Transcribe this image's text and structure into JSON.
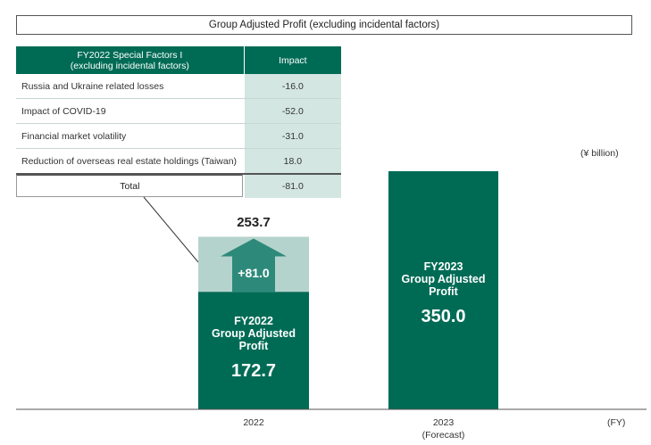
{
  "chart_data": {
    "type": "bar",
    "title": "Group Adjusted Profit (excluding incidental factors)",
    "unit": "(¥ billion)",
    "x_axis_unit": "(FY)",
    "categories": [
      "2022",
      "2023"
    ],
    "category_notes": [
      "",
      "(Forecast)"
    ],
    "bars": [
      {
        "category": "2022",
        "label_lines": [
          "FY2022",
          "Group Adjusted",
          "Profit"
        ],
        "value": 172.7,
        "value_label": "172.7",
        "increment": 81.0,
        "increment_label": "+81.0",
        "total": 253.7,
        "total_label": "253.7"
      },
      {
        "category": "2023",
        "label_lines": [
          "FY2023",
          "Group Adjusted",
          "Profit"
        ],
        "value": 350.0,
        "value_label": "350.0"
      }
    ],
    "ylim": [
      0,
      350
    ],
    "grid": false,
    "colors": {
      "bar": "#006b55",
      "increment_bg": "#b5d3cd",
      "arrow": "#2d8a7a"
    },
    "factors_table": {
      "header_factor": [
        "FY2022 Special Factors I",
        "(excluding incidental factors)"
      ],
      "header_impact": "Impact",
      "rows": [
        {
          "name": "Russia and Ukraine related losses",
          "impact": "-16.0"
        },
        {
          "name": "Impact of COVID-19",
          "impact": "-52.0"
        },
        {
          "name": "Financial market volatility",
          "impact": "-31.0"
        },
        {
          "name": "Reduction of overseas real estate holdings (Taiwan)",
          "impact": "18.0"
        }
      ],
      "total_label": "Total",
      "total_impact": "-81.0"
    }
  }
}
